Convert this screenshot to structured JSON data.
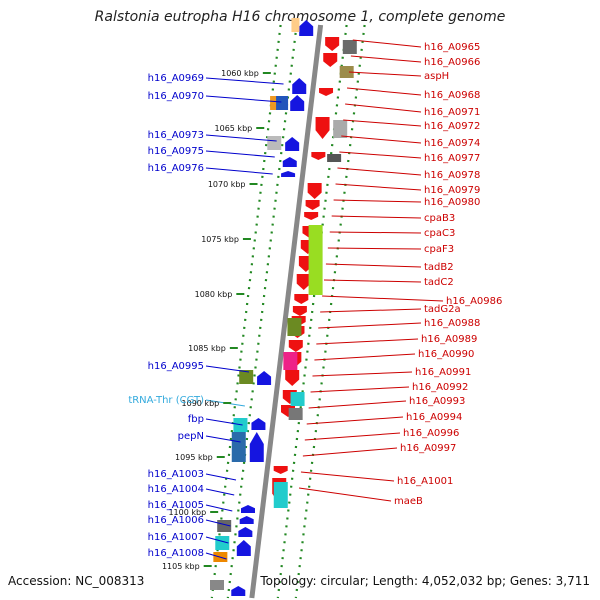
{
  "title": "Ralstonia eutropha H16 chromosome 1, complete genome",
  "footer": {
    "accession": "Accession: NC_008313",
    "stats": "Topology: circular; Length: 4,052,032 bp; Genes: 3,711"
  },
  "colors": {
    "left_label": "#0000cc",
    "right_label": "#cc0000",
    "trna_label": "#33aadd",
    "backbone": "#888888",
    "ticks": "#228822"
  },
  "kbp_marks": [
    "1060 kbp",
    "1065 kbp",
    "1070 kbp",
    "1075 kbp",
    "1080 kbp",
    "1085 kbp",
    "1090 kbp",
    "1095 kbp",
    "1100 kbp",
    "1105 kbp"
  ],
  "left_genes": [
    "h16_A0969",
    "h16_A0970",
    "h16_A0973",
    "h16_A0975",
    "h16_A0976",
    "h16_A0995",
    "tRNA-Thr (CGT)",
    "fbp",
    "pepN",
    "h16_A1003",
    "h16_A1004",
    "h16_A1005",
    "h16_A1006",
    "h16_A1007",
    "h16_A1008"
  ],
  "right_genes": [
    "h16_A0965",
    "h16_A0966",
    "aspH",
    "h16_A0968",
    "h16_A0971",
    "h16_A0972",
    "h16_A0974",
    "h16_A0977",
    "h16_A0978",
    "h16_A0979",
    "h16_A0980",
    "cpaB3",
    "cpaC3",
    "cpaF3",
    "tadB2",
    "tadC2",
    "h16_A0986",
    "tadG2a",
    "h16_A0988",
    "h16_A0989",
    "h16_A0990",
    "h16_A0991",
    "h16_A0992",
    "h16_A0993",
    "h16_A0994",
    "h16_A0996",
    "h16_A0997",
    "h16_A1001",
    "maeB"
  ]
}
